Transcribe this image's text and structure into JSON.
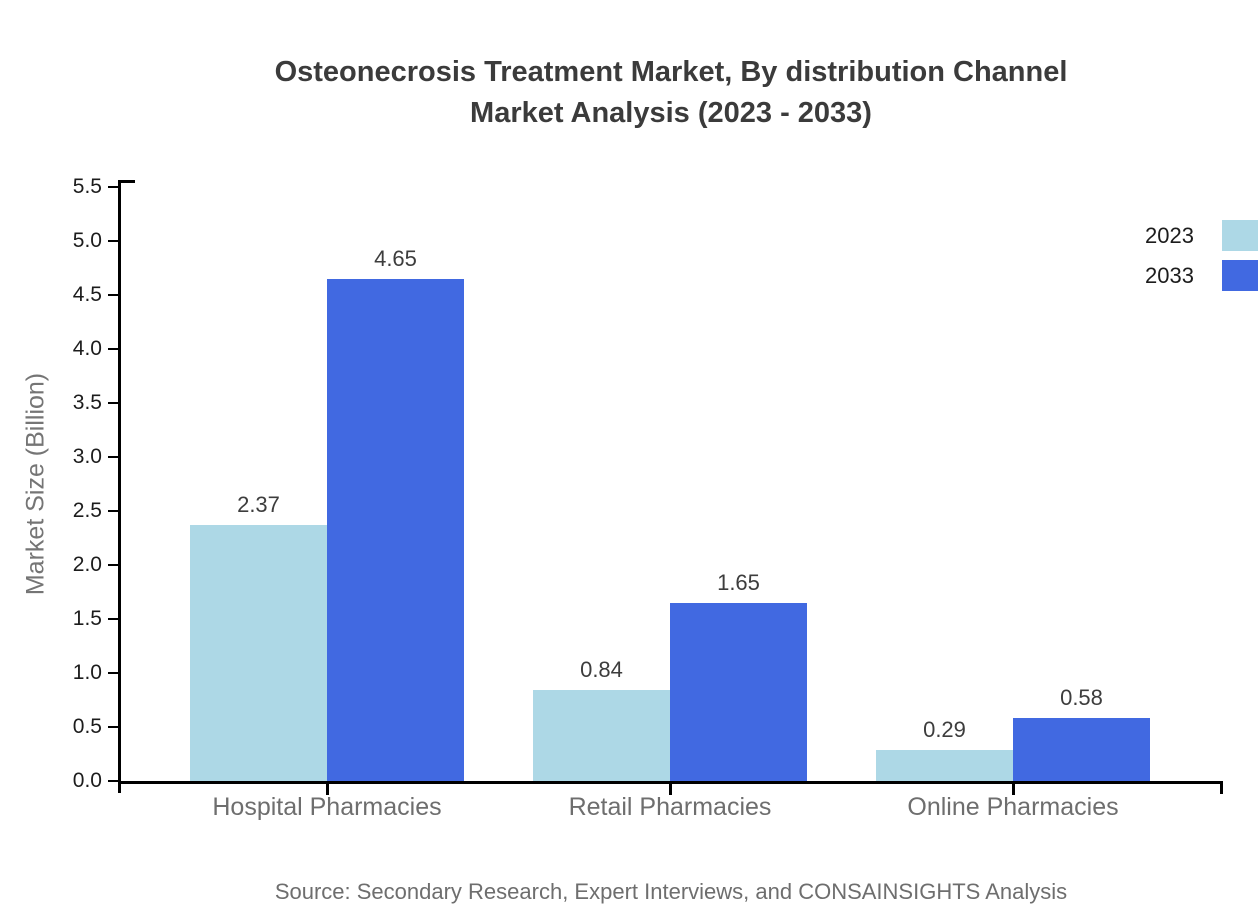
{
  "title": {
    "line1": "Osteonecrosis Treatment Market, By distribution Channel",
    "line2": "Market Analysis (2023 - 2033)"
  },
  "source": "Source: Secondary Research, Expert Interviews, and CONSAINSIGHTS Analysis",
  "chart_data": {
    "type": "bar",
    "title": "Osteonecrosis Treatment Market, By distribution Channel Market Analysis (2023 - 2033)",
    "categories": [
      "Hospital Pharmacies",
      "Retail Pharmacies",
      "Online Pharmacies"
    ],
    "series": [
      {
        "name": "2023",
        "color": "#ADD8E6",
        "values": [
          2.37,
          0.84,
          0.29
        ]
      },
      {
        "name": "2033",
        "color": "#4169E1",
        "values": [
          4.65,
          1.65,
          0.58
        ]
      }
    ],
    "xlabel": "",
    "ylabel": "Market Size (Billion)",
    "ylim": [
      0,
      5.5
    ],
    "ytick_step": 0.5,
    "grid": false,
    "legend_position": "top-right",
    "value_labels": true
  },
  "colors": {
    "series_2023": "#ADD8E6",
    "series_2033": "#4169E1",
    "title_text": "#3b3b3b",
    "axis_line": "#000000",
    "tick_label": "#1c1c1c",
    "category_label": "#6e6e6e",
    "value_label": "#3d3d3d",
    "muted_text": "#757575",
    "background": "#ffffff"
  }
}
